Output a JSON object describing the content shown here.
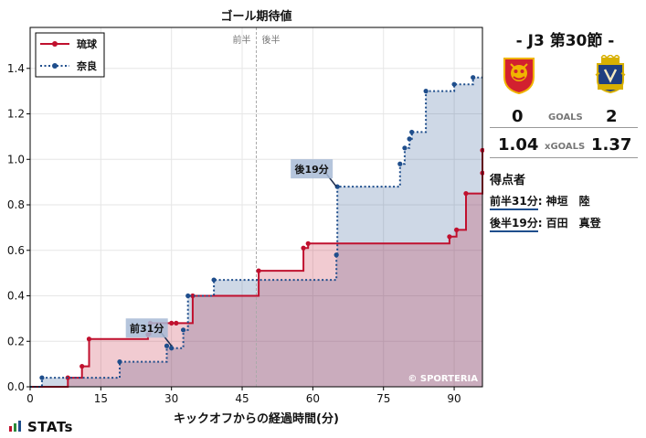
{
  "chart_data": {
    "type": "line",
    "title": "ゴール期待値",
    "xlabel": "キックオフからの経過時間(分)",
    "ylabel": "",
    "xlim": [
      0,
      96
    ],
    "ylim": [
      0,
      1.58
    ],
    "xticks": [
      0,
      15,
      30,
      45,
      60,
      75,
      90
    ],
    "yticks": [
      0.0,
      0.2,
      0.4,
      0.6,
      0.8,
      1.0,
      1.2,
      1.4
    ],
    "halftime": {
      "x": 48,
      "left_label": "前半",
      "right_label": "後半"
    },
    "series": [
      {
        "name": "琉球",
        "color": "#c0102e",
        "style": "solid",
        "points": [
          [
            8,
            0.04
          ],
          [
            11,
            0.09
          ],
          [
            12.5,
            0.21
          ],
          [
            25,
            0.23
          ],
          [
            25.5,
            0.28
          ],
          [
            30,
            0.28
          ],
          [
            31,
            0.28
          ],
          [
            34.5,
            0.4
          ],
          [
            48.5,
            0.51
          ],
          [
            58,
            0.61
          ],
          [
            59,
            0.63
          ],
          [
            89,
            0.66
          ],
          [
            90.5,
            0.69
          ],
          [
            92.5,
            0.85
          ],
          [
            98,
            0.94
          ],
          [
            99,
            1.04
          ]
        ],
        "end": [
          96,
          1.04
        ]
      },
      {
        "name": "奈良",
        "color": "#1f4e8c",
        "style": "dotted",
        "points": [
          [
            2.5,
            0.04
          ],
          [
            19,
            0.11
          ],
          [
            29,
            0.18
          ],
          [
            30,
            0.17
          ],
          [
            32.5,
            0.25
          ],
          [
            33.5,
            0.4
          ],
          [
            39,
            0.47
          ],
          [
            65,
            0.58
          ],
          [
            65.2,
            0.88
          ],
          [
            78.5,
            0.98
          ],
          [
            79.5,
            1.05
          ],
          [
            80.5,
            1.09
          ],
          [
            81,
            1.12
          ],
          [
            84,
            1.3
          ],
          [
            90,
            1.33
          ],
          [
            94,
            1.36
          ]
        ],
        "end": [
          96,
          1.37
        ]
      }
    ],
    "annotations": [
      {
        "label": "前31分",
        "x": 30,
        "y": 0.18,
        "series": "奈良"
      },
      {
        "label": "後19分",
        "x": 65,
        "y": 0.88,
        "series": "奈良"
      }
    ],
    "watermark": "© SPORTERIA",
    "grid": true,
    "legend": "top-left"
  },
  "match": {
    "title": "-  J3 第30節  -",
    "home_goals": "0",
    "away_goals": "2",
    "goals_label": "GOALS",
    "home_xg": "1.04",
    "away_xg": "1.37",
    "xg_label": "xGOALS",
    "home_color": "#c0102e",
    "away_color": "#1f4e8c"
  },
  "scorers": {
    "title": "得点者",
    "items": [
      {
        "time": "前半31分",
        "name": ": 神垣　陸"
      },
      {
        "time": "後半19分",
        "name": ": 百田　真登"
      }
    ]
  },
  "brand": {
    "logo": "STATs"
  }
}
